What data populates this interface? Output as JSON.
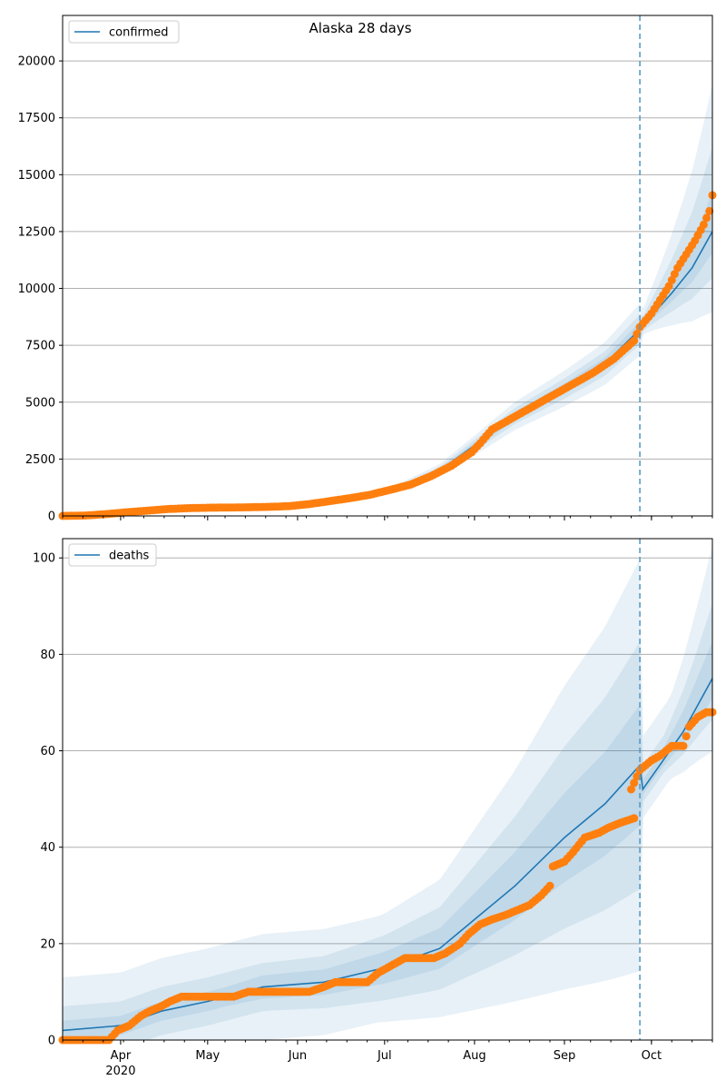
{
  "title": "Alaska 28 days",
  "colors": {
    "model_line": "#1f77b4",
    "observed_points": "#ff7f0e",
    "band": "#1f77b4",
    "forecast_marker": "#5b9bc4",
    "grid": "#b0b0b0"
  },
  "chart_data": [
    {
      "type": "line",
      "title": "Alaska 28 days",
      "legend": {
        "label": "confirmed",
        "placement": "top-left"
      },
      "ylim": [
        0,
        22000
      ],
      "y_ticks": [
        0,
        2500,
        5000,
        7500,
        10000,
        12500,
        15000,
        17500,
        20000
      ],
      "y_tick_labels": [
        "0",
        "2500",
        "5000",
        "7500",
        "10000",
        "12500",
        "15000",
        "17500",
        "20000"
      ],
      "grid": "horizontal",
      "forecast_start": "2020-09-27",
      "observed": [
        [
          "2020-03-12",
          1
        ],
        [
          "2020-03-20",
          20
        ],
        [
          "2020-03-27",
          80
        ],
        [
          "2020-04-03",
          160
        ],
        [
          "2020-04-10",
          230
        ],
        [
          "2020-04-17",
          300
        ],
        [
          "2020-04-24",
          340
        ],
        [
          "2020-05-01",
          360
        ],
        [
          "2020-05-08",
          370
        ],
        [
          "2020-05-15",
          380
        ],
        [
          "2020-05-22",
          400
        ],
        [
          "2020-05-29",
          430
        ],
        [
          "2020-06-05",
          520
        ],
        [
          "2020-06-12",
          650
        ],
        [
          "2020-06-19",
          780
        ],
        [
          "2020-06-26",
          930
        ],
        [
          "2020-07-03",
          1150
        ],
        [
          "2020-07-10",
          1380
        ],
        [
          "2020-07-17",
          1750
        ],
        [
          "2020-07-24",
          2200
        ],
        [
          "2020-07-31",
          2800
        ],
        [
          "2020-08-03",
          3200
        ],
        [
          "2020-08-07",
          3800
        ],
        [
          "2020-08-14",
          4300
        ],
        [
          "2020-08-21",
          4800
        ],
        [
          "2020-08-28",
          5300
        ],
        [
          "2020-09-04",
          5800
        ],
        [
          "2020-09-11",
          6300
        ],
        [
          "2020-09-18",
          6900
        ],
        [
          "2020-09-25",
          7700
        ],
        [
          "2020-09-27",
          8300
        ],
        [
          "2020-10-01",
          8900
        ],
        [
          "2020-10-04",
          9500
        ],
        [
          "2020-10-07",
          10100
        ],
        [
          "2020-10-10",
          10900
        ],
        [
          "2020-10-13",
          11500
        ],
        [
          "2020-10-16",
          12100
        ],
        [
          "2020-10-19",
          12800
        ],
        [
          "2020-10-21",
          13400
        ],
        [
          "2020-10-22",
          14100
        ]
      ],
      "model": [
        [
          "2020-03-12",
          0
        ],
        [
          "2020-04-01",
          150
        ],
        [
          "2020-05-01",
          350
        ],
        [
          "2020-06-01",
          460
        ],
        [
          "2020-06-20",
          780
        ],
        [
          "2020-07-05",
          1200
        ],
        [
          "2020-07-20",
          2000
        ],
        [
          "2020-08-01",
          3100
        ],
        [
          "2020-08-15",
          4400
        ],
        [
          "2020-09-01",
          5600
        ],
        [
          "2020-09-15",
          6700
        ],
        [
          "2020-09-27",
          8200
        ],
        [
          "2020-10-01",
          8800
        ],
        [
          "2020-10-08",
          9800
        ],
        [
          "2020-10-15",
          10900
        ],
        [
          "2020-10-22",
          12500
        ]
      ]
    },
    {
      "type": "line",
      "legend": {
        "label": "deaths",
        "placement": "top-left"
      },
      "ylim": [
        0,
        104
      ],
      "y_ticks": [
        0,
        20,
        40,
        60,
        80,
        100
      ],
      "y_tick_labels": [
        "0",
        "20",
        "40",
        "60",
        "80",
        "100"
      ],
      "grid": "horizontal",
      "forecast_start": "2020-09-27",
      "observed": [
        [
          "2020-03-12",
          0
        ],
        [
          "2020-03-20",
          0
        ],
        [
          "2020-03-28",
          0
        ],
        [
          "2020-03-31",
          2
        ],
        [
          "2020-04-04",
          3
        ],
        [
          "2020-04-08",
          5
        ],
        [
          "2020-04-11",
          6
        ],
        [
          "2020-04-15",
          7
        ],
        [
          "2020-04-18",
          8
        ],
        [
          "2020-04-22",
          9
        ],
        [
          "2020-05-01",
          9
        ],
        [
          "2020-05-10",
          9
        ],
        [
          "2020-05-15",
          10
        ],
        [
          "2020-05-25",
          10
        ],
        [
          "2020-06-05",
          10
        ],
        [
          "2020-06-10",
          11
        ],
        [
          "2020-06-14",
          12
        ],
        [
          "2020-06-25",
          12
        ],
        [
          "2020-06-29",
          14
        ],
        [
          "2020-07-05",
          16
        ],
        [
          "2020-07-08",
          17
        ],
        [
          "2020-07-18",
          17
        ],
        [
          "2020-07-22",
          18
        ],
        [
          "2020-07-27",
          20
        ],
        [
          "2020-07-30",
          22
        ],
        [
          "2020-08-03",
          24
        ],
        [
          "2020-08-07",
          25
        ],
        [
          "2020-08-12",
          26
        ],
        [
          "2020-08-16",
          27
        ],
        [
          "2020-08-20",
          28
        ],
        [
          "2020-08-24",
          30
        ],
        [
          "2020-08-27",
          32
        ],
        [
          "2020-08-28",
          36
        ],
        [
          "2020-09-01",
          37
        ],
        [
          "2020-09-04",
          39
        ],
        [
          "2020-09-08",
          42
        ],
        [
          "2020-09-13",
          43
        ],
        [
          "2020-09-16",
          44
        ],
        [
          "2020-09-20",
          45
        ],
        [
          "2020-09-25",
          46
        ],
        [
          "2020-09-24",
          52
        ],
        [
          "2020-09-27",
          56
        ],
        [
          "2020-10-01",
          58
        ],
        [
          "2020-10-04",
          59
        ],
        [
          "2020-10-08",
          61
        ],
        [
          "2020-10-12",
          61
        ],
        [
          "2020-10-14",
          65
        ],
        [
          "2020-10-17",
          67
        ],
        [
          "2020-10-20",
          68
        ],
        [
          "2020-10-22",
          68
        ]
      ],
      "model": [
        [
          "2020-03-12",
          2
        ],
        [
          "2020-04-01",
          3
        ],
        [
          "2020-04-15",
          6
        ],
        [
          "2020-05-01",
          8
        ],
        [
          "2020-05-20",
          11
        ],
        [
          "2020-06-10",
          12
        ],
        [
          "2020-07-01",
          15
        ],
        [
          "2020-07-20",
          19
        ],
        [
          "2020-08-01",
          25
        ],
        [
          "2020-08-15",
          32
        ],
        [
          "2020-09-01",
          42
        ],
        [
          "2020-09-15",
          49
        ],
        [
          "2020-09-27",
          57
        ],
        [
          "2020-09-28",
          52
        ],
        [
          "2020-10-05",
          58
        ],
        [
          "2020-10-12",
          64
        ],
        [
          "2020-10-22",
          75
        ]
      ]
    }
  ],
  "x_axis": {
    "start": "2020-03-12",
    "end": "2020-10-22",
    "ticks": [
      {
        "date": "2020-04-01",
        "label": "Apr",
        "sublabel": "2020"
      },
      {
        "date": "2020-05-01",
        "label": "May",
        "sublabel": ""
      },
      {
        "date": "2020-06-01",
        "label": "Jun",
        "sublabel": ""
      },
      {
        "date": "2020-07-01",
        "label": "Jul",
        "sublabel": ""
      },
      {
        "date": "2020-08-01",
        "label": "Aug",
        "sublabel": ""
      },
      {
        "date": "2020-09-01",
        "label": "Sep",
        "sublabel": ""
      },
      {
        "date": "2020-10-01",
        "label": "Oct",
        "sublabel": ""
      }
    ]
  }
}
